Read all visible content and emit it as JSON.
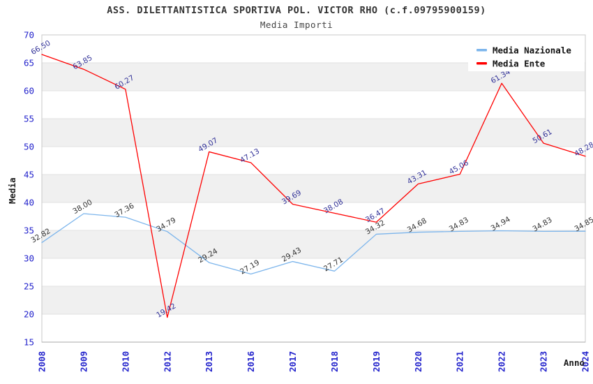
{
  "title": "ASS. DILETTANTISTICA SPORTIVA POL. VICTOR RHO (c.f.09795900159)",
  "subtitle": "Media Importi",
  "chart_data": {
    "type": "line",
    "title": "ASS. DILETTANTISTICA SPORTIVA POL. VICTOR RHO (c.f.09795900159)",
    "subtitle": "Media Importi",
    "xlabel": "Anno",
    "ylabel": "Media",
    "ylim": [
      15,
      70
    ],
    "ytick_step": 5,
    "grid": true,
    "legend_position": "top-right",
    "categories": [
      "2008",
      "2009",
      "2010",
      "2012",
      "2013",
      "2016",
      "2017",
      "2018",
      "2019",
      "2020",
      "2021",
      "2022",
      "2023",
      "2024"
    ],
    "series": [
      {
        "name": "Media Nazionale",
        "color": "#7cb5ec",
        "label_color": "#333333",
        "values": [
          32.82,
          38.0,
          37.36,
          34.79,
          29.24,
          27.19,
          29.43,
          27.71,
          34.32,
          34.68,
          34.83,
          34.94,
          34.83,
          34.85
        ]
      },
      {
        "name": "Media Ente",
        "color": "#ff0000",
        "label_color": "#333399",
        "values": [
          66.5,
          63.85,
          60.27,
          19.42,
          49.07,
          47.13,
          39.69,
          38.08,
          36.47,
          43.31,
          45.06,
          61.34,
          50.61,
          48.28
        ]
      }
    ],
    "colors": {
      "tick_label": "#2323cc",
      "band_fill": "#f0f0f0",
      "gridline": "#e2e2e2",
      "plot_border": "#c8c8c8",
      "bottom_axis": "#a8a8a8",
      "axis_title": "#1a1a1a",
      "legend_text": "#111111",
      "legend_bg": "#ffffff"
    }
  }
}
